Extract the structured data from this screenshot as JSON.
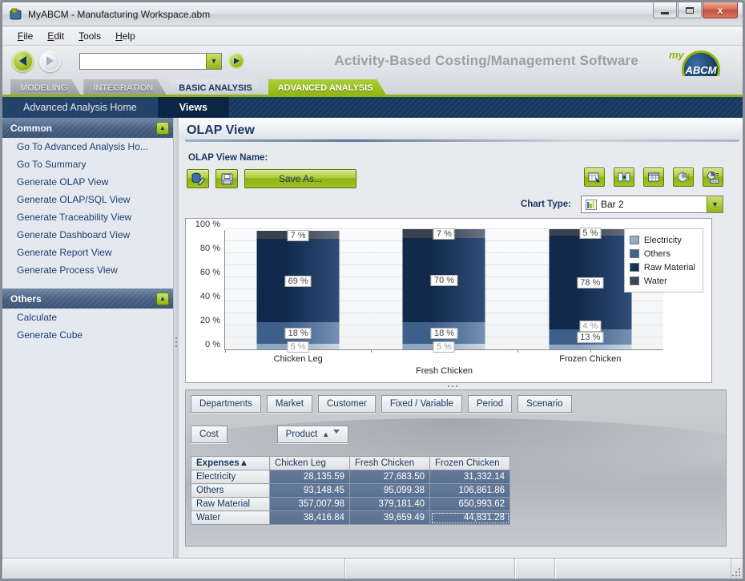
{
  "window": {
    "title": "MyABCM  - Manufacturing Workspace.abm"
  },
  "menu": {
    "items": [
      "File",
      "Edit",
      "Tools",
      "Help"
    ]
  },
  "header": {
    "tagline": "Activity-Based Costing/Management Software",
    "logo_my": "my",
    "logo_abcm": "ABCM"
  },
  "tabs": [
    {
      "label": "MODELING",
      "style": "dark",
      "active": false
    },
    {
      "label": "INTEGRATION",
      "style": "dark",
      "active": false
    },
    {
      "label": "BASIC ANALYSIS",
      "style": "lite",
      "active": false
    },
    {
      "label": "ADVANCED ANALYSIS",
      "style": "green",
      "active": true
    }
  ],
  "subnav": [
    {
      "label": "Advanced Analysis Home",
      "active": false
    },
    {
      "label": "Views",
      "active": true
    }
  ],
  "sidebar": {
    "sections": [
      {
        "title": "Common",
        "items": [
          "Go To Advanced Analysis Ho...",
          "Go To Summary",
          "Generate OLAP View",
          "Generate OLAP/SQL View",
          "Generate Traceability View",
          "Generate Dashboard View",
          "Generate Report View",
          "Generate Process View"
        ]
      },
      {
        "title": "Others",
        "items": [
          "Calculate",
          "Generate Cube"
        ]
      }
    ]
  },
  "main": {
    "title": "OLAP View",
    "view_name_label": "OLAP View Name:",
    "save_as_label": "Save As...",
    "chart_type_label": "Chart Type:",
    "chart_type_value": "Bar 2",
    "icon_buttons": [
      "edit-view",
      "save-view",
      "export-grid",
      "swap-axes",
      "show-grid",
      "show-chart",
      "chart-and-grid"
    ]
  },
  "chart_data": {
    "type": "bar",
    "stacked": true,
    "percent_axis": true,
    "categories": [
      "Chicken Leg",
      "Fresh Chicken",
      "Frozen Chicken"
    ],
    "series": [
      {
        "name": "Electricity",
        "values": [
          5,
          5,
          4
        ],
        "color_from": "#8ea6c0",
        "color_to": "#cdd8e3",
        "label_color": "#9a9a9a"
      },
      {
        "name": "Others",
        "values": [
          18,
          18,
          13
        ],
        "color_from": "#3d5f8a",
        "color_to": "#7590b2",
        "label_color": "#444444"
      },
      {
        "name": "Raw Material",
        "values": [
          69,
          70,
          78
        ],
        "color_from": "#12294b",
        "color_to": "#2e4e78",
        "label_color": "#444444"
      },
      {
        "name": "Water",
        "values": [
          7,
          7,
          5
        ],
        "color_from": "#38424e",
        "color_to": "#67727f",
        "label_color": "#444444"
      }
    ],
    "y_ticks": [
      "0 %",
      "20 %",
      "40 %",
      "60 %",
      "80 %",
      "100 %"
    ],
    "ylim": [
      0,
      100
    ],
    "grid": true,
    "legend_position": "top-right",
    "legend_swatches": {
      "Electricity": "#9fb4c9",
      "Others": "#46688f",
      "Raw Material": "#1d3a61",
      "Water": "#444e5a"
    }
  },
  "pivot": {
    "dimension_buttons": [
      "Departments",
      "Market",
      "Customer",
      "Fixed / Variable",
      "Period",
      "Scenario"
    ],
    "row_area_button": "Cost",
    "column_field": "Product",
    "row_field": "Expenses",
    "columns": [
      "Chicken Leg",
      "Fresh Chicken",
      "Frozen Chicken"
    ],
    "rows": [
      {
        "label": "Electricity",
        "values": [
          "28,135.59",
          "27,683.50",
          "31,332.14"
        ]
      },
      {
        "label": "Others",
        "values": [
          "93,148.45",
          "95,099.38",
          "106,861.86"
        ]
      },
      {
        "label": "Raw Material",
        "values": [
          "357,007.98",
          "379,181.40",
          "650,993.62"
        ]
      },
      {
        "label": "Water",
        "values": [
          "38,416.84",
          "39,659.49",
          "44,831.28"
        ]
      }
    ],
    "selected_cell": {
      "row": "Water",
      "column": "Frozen Chicken"
    }
  }
}
